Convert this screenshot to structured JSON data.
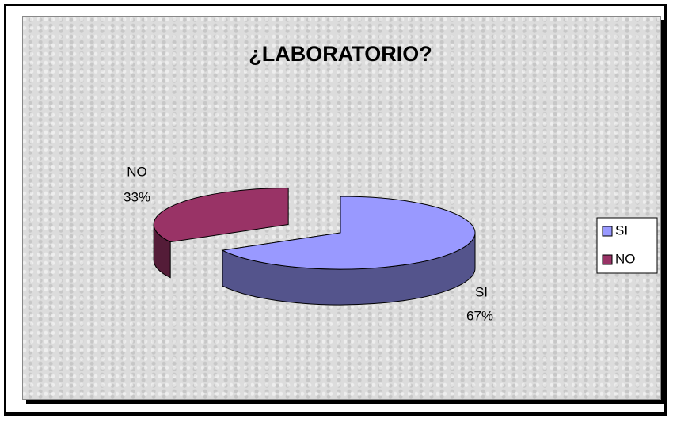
{
  "chart_data": {
    "type": "pie3d",
    "title": "¿LABORATORIO?",
    "categories": [
      "SI",
      "NO"
    ],
    "values": [
      67,
      33
    ],
    "value_labels": [
      "67%",
      "33%"
    ],
    "colors": [
      "#9999ff",
      "#993366"
    ],
    "legend": "right"
  }
}
